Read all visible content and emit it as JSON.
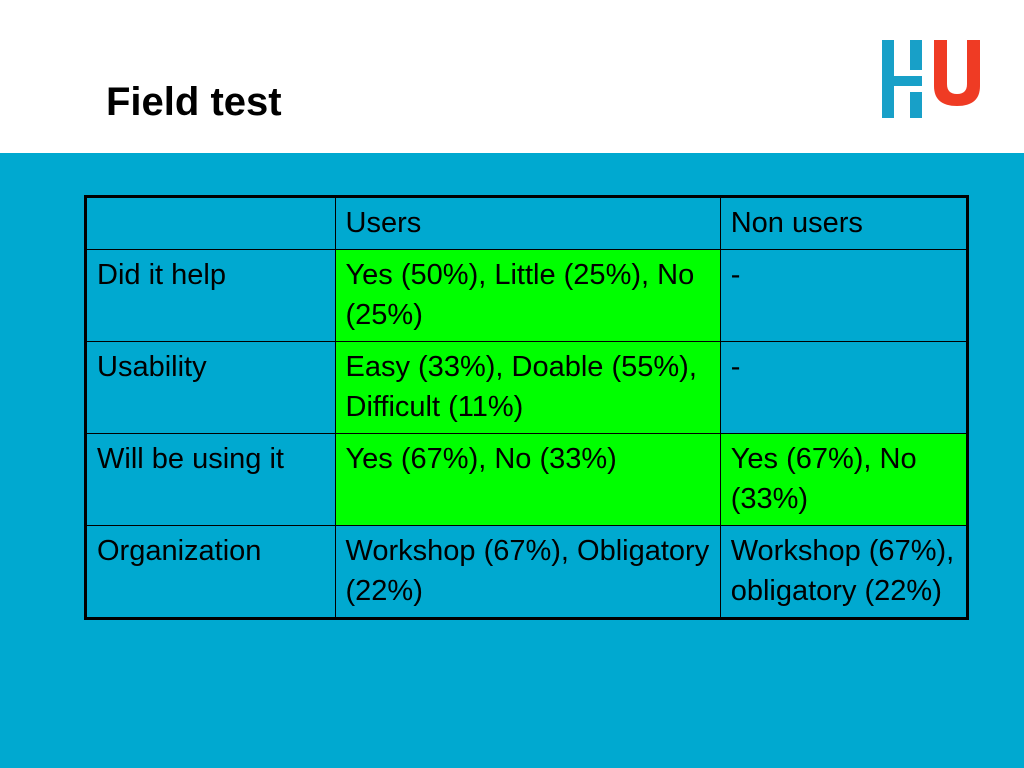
{
  "slide": {
    "title": "Field test",
    "logo_colors": {
      "blue": "#18a0c8",
      "red": "#ef3b24"
    },
    "background_color": "#00a9d0",
    "highlight_color": "#00ff00"
  },
  "table": {
    "headers": [
      "",
      "Users",
      "Non users"
    ],
    "rows": [
      {
        "label": "Did it help",
        "users": "Yes (50%), Little (25%), No (25%)",
        "non_users": "-",
        "users_highlight": true,
        "non_users_highlight": false
      },
      {
        "label": "Usability",
        "users": "Easy (33%), Doable (55%), Difficult (11%)",
        "non_users": "-",
        "users_highlight": true,
        "non_users_highlight": false
      },
      {
        "label": "Will be using it",
        "users": "Yes (67%), No (33%)",
        "non_users": "Yes (67%), No (33%)",
        "users_highlight": true,
        "non_users_highlight": true
      },
      {
        "label": "Organization",
        "users": "Workshop (67%), Obligatory (22%)",
        "non_users": "Workshop (67%), obligatory (22%)",
        "users_highlight": false,
        "non_users_highlight": false
      }
    ]
  }
}
